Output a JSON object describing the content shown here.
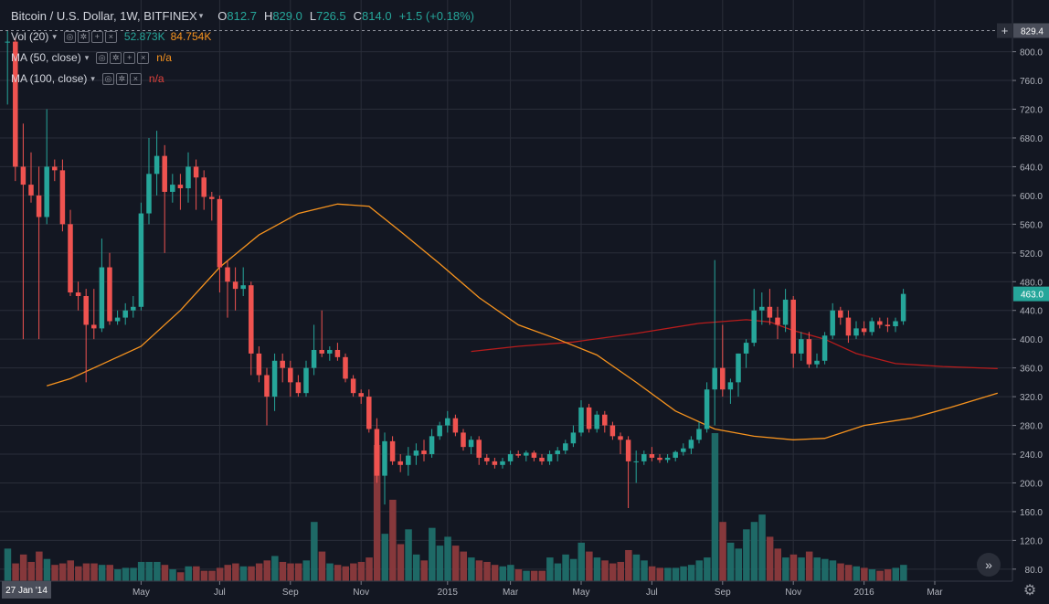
{
  "header": {
    "symbol": "Bitcoin / U.S. Dollar, 1W, BITFINEX",
    "open_label": "O",
    "open": "812.7",
    "high_label": "H",
    "high": "829.0",
    "low_label": "L",
    "low": "726.5",
    "close_label": "C",
    "close": "814.0",
    "change": "+1.5 (+0.18%)"
  },
  "indicators": {
    "vol": {
      "label": "Vol (20)",
      "value1": "52.873K",
      "value2": "84.754K"
    },
    "ma50": {
      "label": "MA (50, close)",
      "value": "n/a"
    },
    "ma100": {
      "label": "MA (100, close)",
      "value": "n/a"
    }
  },
  "buttons": {
    "expand": "»",
    "settings": "⚙",
    "glyph_eye": "◎",
    "glyph_gear": "✲",
    "glyph_plus": "+",
    "glyph_close": "×"
  },
  "colors": {
    "up": "#26a69a",
    "down": "#ef5350",
    "ma50": "#f7931e",
    "ma100": "#b71c1c",
    "bg": "#131722",
    "grid": "#2a2e39"
  },
  "chart_data": {
    "type": "candlestick",
    "title": "Bitcoin / U.S. Dollar, 1W, BITFINEX",
    "ylim": [
      62,
      844
    ],
    "y_ticks": [
      "80.0",
      "120.0",
      "160.0",
      "200.0",
      "240.0",
      "280.0",
      "320.0",
      "360.0",
      "400.0",
      "440.0",
      "480.0",
      "520.0",
      "560.0",
      "600.0",
      "640.0",
      "680.0",
      "720.0",
      "760.0",
      "800.0"
    ],
    "x_ticks": [
      {
        "label": "May",
        "index": 17
      },
      {
        "label": "Jul",
        "index": 27
      },
      {
        "label": "Sep",
        "index": 36
      },
      {
        "label": "Nov",
        "index": 45
      },
      {
        "label": "2015",
        "index": 56
      },
      {
        "label": "Mar",
        "index": 64
      },
      {
        "label": "May",
        "index": 73
      },
      {
        "label": "Jul",
        "index": 82
      },
      {
        "label": "Sep",
        "index": 91
      },
      {
        "label": "Nov",
        "index": 100
      },
      {
        "label": "2016",
        "index": 109
      },
      {
        "label": "Mar",
        "index": 118
      }
    ],
    "crosshair_date": "27 Jan '14",
    "last_price_label": "829.4",
    "current_price_label": "463.0",
    "last_price": 829.4,
    "current_price": 463.0,
    "volume_max": 1.0,
    "candles": [
      {
        "o": 812.7,
        "h": 829.0,
        "l": 726.5,
        "c": 814.0,
        "v": 0.22
      },
      {
        "o": 814,
        "h": 820,
        "l": 620,
        "c": 640,
        "v": 0.12
      },
      {
        "o": 640,
        "h": 700,
        "l": 400,
        "c": 615,
        "v": 0.18
      },
      {
        "o": 615,
        "h": 660,
        "l": 590,
        "c": 600,
        "v": 0.13
      },
      {
        "o": 600,
        "h": 640,
        "l": 400,
        "c": 570,
        "v": 0.2
      },
      {
        "o": 570,
        "h": 720,
        "l": 560,
        "c": 640,
        "v": 0.15
      },
      {
        "o": 640,
        "h": 650,
        "l": 620,
        "c": 635,
        "v": 0.11
      },
      {
        "o": 635,
        "h": 650,
        "l": 550,
        "c": 560,
        "v": 0.12
      },
      {
        "o": 560,
        "h": 580,
        "l": 460,
        "c": 465,
        "v": 0.14
      },
      {
        "o": 465,
        "h": 480,
        "l": 440,
        "c": 460,
        "v": 0.1
      },
      {
        "o": 460,
        "h": 470,
        "l": 340,
        "c": 420,
        "v": 0.12
      },
      {
        "o": 420,
        "h": 470,
        "l": 400,
        "c": 415,
        "v": 0.12
      },
      {
        "o": 415,
        "h": 540,
        "l": 410,
        "c": 500,
        "v": 0.11
      },
      {
        "o": 500,
        "h": 520,
        "l": 420,
        "c": 425,
        "v": 0.11
      },
      {
        "o": 425,
        "h": 440,
        "l": 420,
        "c": 430,
        "v": 0.08
      },
      {
        "o": 430,
        "h": 450,
        "l": 420,
        "c": 440,
        "v": 0.09
      },
      {
        "o": 440,
        "h": 460,
        "l": 430,
        "c": 445,
        "v": 0.09
      },
      {
        "o": 445,
        "h": 590,
        "l": 440,
        "c": 575,
        "v": 0.13
      },
      {
        "o": 575,
        "h": 680,
        "l": 560,
        "c": 630,
        "v": 0.13
      },
      {
        "o": 630,
        "h": 690,
        "l": 600,
        "c": 655,
        "v": 0.13
      },
      {
        "o": 655,
        "h": 670,
        "l": 520,
        "c": 605,
        "v": 0.11
      },
      {
        "o": 605,
        "h": 630,
        "l": 590,
        "c": 615,
        "v": 0.08
      },
      {
        "o": 615,
        "h": 630,
        "l": 580,
        "c": 610,
        "v": 0.06
      },
      {
        "o": 610,
        "h": 660,
        "l": 590,
        "c": 640,
        "v": 0.1
      },
      {
        "o": 640,
        "h": 650,
        "l": 580,
        "c": 625,
        "v": 0.1
      },
      {
        "o": 625,
        "h": 635,
        "l": 580,
        "c": 598,
        "v": 0.07
      },
      {
        "o": 598,
        "h": 605,
        "l": 565,
        "c": 595,
        "v": 0.07
      },
      {
        "o": 595,
        "h": 600,
        "l": 465,
        "c": 500,
        "v": 0.09
      },
      {
        "o": 500,
        "h": 510,
        "l": 430,
        "c": 480,
        "v": 0.11
      },
      {
        "o": 480,
        "h": 500,
        "l": 440,
        "c": 470,
        "v": 0.12
      },
      {
        "o": 470,
        "h": 500,
        "l": 460,
        "c": 475,
        "v": 0.1
      },
      {
        "o": 475,
        "h": 480,
        "l": 350,
        "c": 380,
        "v": 0.1
      },
      {
        "o": 380,
        "h": 390,
        "l": 340,
        "c": 350,
        "v": 0.12
      },
      {
        "o": 350,
        "h": 360,
        "l": 280,
        "c": 320,
        "v": 0.14
      },
      {
        "o": 320,
        "h": 380,
        "l": 300,
        "c": 370,
        "v": 0.17
      },
      {
        "o": 370,
        "h": 380,
        "l": 340,
        "c": 360,
        "v": 0.13
      },
      {
        "o": 360,
        "h": 370,
        "l": 320,
        "c": 340,
        "v": 0.12
      },
      {
        "o": 340,
        "h": 350,
        "l": 320,
        "c": 325,
        "v": 0.12
      },
      {
        "o": 325,
        "h": 370,
        "l": 320,
        "c": 360,
        "v": 0.14
      },
      {
        "o": 360,
        "h": 420,
        "l": 350,
        "c": 385,
        "v": 0.4
      },
      {
        "o": 385,
        "h": 440,
        "l": 375,
        "c": 380,
        "v": 0.2
      },
      {
        "o": 380,
        "h": 390,
        "l": 370,
        "c": 385,
        "v": 0.12
      },
      {
        "o": 385,
        "h": 395,
        "l": 370,
        "c": 375,
        "v": 0.11
      },
      {
        "o": 375,
        "h": 380,
        "l": 340,
        "c": 345,
        "v": 0.1
      },
      {
        "o": 345,
        "h": 350,
        "l": 320,
        "c": 325,
        "v": 0.12
      },
      {
        "o": 325,
        "h": 330,
        "l": 310,
        "c": 320,
        "v": 0.13
      },
      {
        "o": 320,
        "h": 330,
        "l": 270,
        "c": 275,
        "v": 0.16
      },
      {
        "o": 275,
        "h": 290,
        "l": 200,
        "c": 210,
        "v": 0.92
      },
      {
        "o": 210,
        "h": 270,
        "l": 170,
        "c": 258,
        "v": 0.32
      },
      {
        "o": 258,
        "h": 265,
        "l": 225,
        "c": 230,
        "v": 0.55
      },
      {
        "o": 230,
        "h": 240,
        "l": 215,
        "c": 225,
        "v": 0.25
      },
      {
        "o": 225,
        "h": 250,
        "l": 210,
        "c": 238,
        "v": 0.35
      },
      {
        "o": 238,
        "h": 255,
        "l": 225,
        "c": 245,
        "v": 0.18
      },
      {
        "o": 245,
        "h": 260,
        "l": 230,
        "c": 240,
        "v": 0.14
      },
      {
        "o": 240,
        "h": 275,
        "l": 235,
        "c": 265,
        "v": 0.36
      },
      {
        "o": 265,
        "h": 285,
        "l": 260,
        "c": 280,
        "v": 0.24
      },
      {
        "o": 280,
        "h": 300,
        "l": 270,
        "c": 290,
        "v": 0.3
      },
      {
        "o": 290,
        "h": 295,
        "l": 265,
        "c": 270,
        "v": 0.24
      },
      {
        "o": 270,
        "h": 275,
        "l": 245,
        "c": 250,
        "v": 0.2
      },
      {
        "o": 250,
        "h": 265,
        "l": 240,
        "c": 260,
        "v": 0.16
      },
      {
        "o": 260,
        "h": 265,
        "l": 225,
        "c": 235,
        "v": 0.14
      },
      {
        "o": 235,
        "h": 240,
        "l": 225,
        "c": 230,
        "v": 0.13
      },
      {
        "o": 230,
        "h": 235,
        "l": 220,
        "c": 225,
        "v": 0.11
      },
      {
        "o": 225,
        "h": 235,
        "l": 220,
        "c": 230,
        "v": 0.1
      },
      {
        "o": 230,
        "h": 245,
        "l": 225,
        "c": 240,
        "v": 0.11
      },
      {
        "o": 240,
        "h": 245,
        "l": 235,
        "c": 238,
        "v": 0.08
      },
      {
        "o": 238,
        "h": 245,
        "l": 230,
        "c": 242,
        "v": 0.07
      },
      {
        "o": 242,
        "h": 245,
        "l": 230,
        "c": 235,
        "v": 0.07
      },
      {
        "o": 235,
        "h": 240,
        "l": 225,
        "c": 230,
        "v": 0.07
      },
      {
        "o": 230,
        "h": 245,
        "l": 225,
        "c": 240,
        "v": 0.16
      },
      {
        "o": 240,
        "h": 250,
        "l": 230,
        "c": 245,
        "v": 0.12
      },
      {
        "o": 245,
        "h": 260,
        "l": 240,
        "c": 255,
        "v": 0.18
      },
      {
        "o": 255,
        "h": 280,
        "l": 250,
        "c": 270,
        "v": 0.15
      },
      {
        "o": 270,
        "h": 315,
        "l": 265,
        "c": 305,
        "v": 0.26
      },
      {
        "o": 305,
        "h": 310,
        "l": 270,
        "c": 275,
        "v": 0.2
      },
      {
        "o": 275,
        "h": 300,
        "l": 270,
        "c": 295,
        "v": 0.16
      },
      {
        "o": 295,
        "h": 300,
        "l": 270,
        "c": 280,
        "v": 0.14
      },
      {
        "o": 280,
        "h": 285,
        "l": 260,
        "c": 265,
        "v": 0.12
      },
      {
        "o": 265,
        "h": 270,
        "l": 240,
        "c": 260,
        "v": 0.13
      },
      {
        "o": 260,
        "h": 265,
        "l": 165,
        "c": 230,
        "v": 0.21
      },
      {
        "o": 230,
        "h": 245,
        "l": 200,
        "c": 230,
        "v": 0.18
      },
      {
        "o": 230,
        "h": 245,
        "l": 225,
        "c": 240,
        "v": 0.14
      },
      {
        "o": 240,
        "h": 250,
        "l": 230,
        "c": 235,
        "v": 0.1
      },
      {
        "o": 235,
        "h": 240,
        "l": 228,
        "c": 232,
        "v": 0.09
      },
      {
        "o": 232,
        "h": 240,
        "l": 228,
        "c": 235,
        "v": 0.09
      },
      {
        "o": 235,
        "h": 245,
        "l": 230,
        "c": 243,
        "v": 0.09
      },
      {
        "o": 243,
        "h": 255,
        "l": 238,
        "c": 248,
        "v": 0.1
      },
      {
        "o": 248,
        "h": 265,
        "l": 240,
        "c": 260,
        "v": 0.11
      },
      {
        "o": 260,
        "h": 285,
        "l": 255,
        "c": 275,
        "v": 0.14
      },
      {
        "o": 275,
        "h": 340,
        "l": 270,
        "c": 330,
        "v": 0.16
      },
      {
        "o": 330,
        "h": 510,
        "l": 280,
        "c": 360,
        "v": 1.0
      },
      {
        "o": 360,
        "h": 420,
        "l": 320,
        "c": 330,
        "v": 0.4
      },
      {
        "o": 330,
        "h": 345,
        "l": 310,
        "c": 340,
        "v": 0.26
      },
      {
        "o": 340,
        "h": 380,
        "l": 320,
        "c": 380,
        "v": 0.22
      },
      {
        "o": 380,
        "h": 400,
        "l": 360,
        "c": 395,
        "v": 0.35
      },
      {
        "o": 395,
        "h": 470,
        "l": 390,
        "c": 440,
        "v": 0.4
      },
      {
        "o": 440,
        "h": 465,
        "l": 420,
        "c": 445,
        "v": 0.45
      },
      {
        "o": 445,
        "h": 470,
        "l": 420,
        "c": 430,
        "v": 0.3
      },
      {
        "o": 430,
        "h": 445,
        "l": 400,
        "c": 420,
        "v": 0.22
      },
      {
        "o": 420,
        "h": 470,
        "l": 410,
        "c": 455,
        "v": 0.16
      },
      {
        "o": 455,
        "h": 460,
        "l": 360,
        "c": 380,
        "v": 0.18
      },
      {
        "o": 380,
        "h": 410,
        "l": 370,
        "c": 400,
        "v": 0.16
      },
      {
        "o": 400,
        "h": 410,
        "l": 360,
        "c": 365,
        "v": 0.2
      },
      {
        "o": 365,
        "h": 380,
        "l": 360,
        "c": 370,
        "v": 0.16
      },
      {
        "o": 370,
        "h": 410,
        "l": 365,
        "c": 405,
        "v": 0.15
      },
      {
        "o": 405,
        "h": 450,
        "l": 400,
        "c": 440,
        "v": 0.14
      },
      {
        "o": 440,
        "h": 445,
        "l": 420,
        "c": 430,
        "v": 0.12
      },
      {
        "o": 430,
        "h": 440,
        "l": 395,
        "c": 405,
        "v": 0.11
      },
      {
        "o": 405,
        "h": 425,
        "l": 400,
        "c": 415,
        "v": 0.1
      },
      {
        "o": 415,
        "h": 425,
        "l": 405,
        "c": 410,
        "v": 0.09
      },
      {
        "o": 410,
        "h": 430,
        "l": 405,
        "c": 425,
        "v": 0.08
      },
      {
        "o": 425,
        "h": 430,
        "l": 415,
        "c": 420,
        "v": 0.07
      },
      {
        "o": 420,
        "h": 430,
        "l": 410,
        "c": 418,
        "v": 0.08
      },
      {
        "o": 418,
        "h": 430,
        "l": 410,
        "c": 425,
        "v": 0.09
      },
      {
        "o": 425,
        "h": 470,
        "l": 420,
        "c": 463,
        "v": 0.11
      }
    ],
    "ma50": [
      {
        "i": 5,
        "v": 335
      },
      {
        "i": 8,
        "v": 345
      },
      {
        "i": 12,
        "v": 365
      },
      {
        "i": 17,
        "v": 390
      },
      {
        "i": 22,
        "v": 440
      },
      {
        "i": 27,
        "v": 500
      },
      {
        "i": 32,
        "v": 545
      },
      {
        "i": 37,
        "v": 575
      },
      {
        "i": 42,
        "v": 588
      },
      {
        "i": 46,
        "v": 585
      },
      {
        "i": 50,
        "v": 550
      },
      {
        "i": 55,
        "v": 505
      },
      {
        "i": 60,
        "v": 458
      },
      {
        "i": 65,
        "v": 420
      },
      {
        "i": 70,
        "v": 400
      },
      {
        "i": 75,
        "v": 378
      },
      {
        "i": 80,
        "v": 340
      },
      {
        "i": 85,
        "v": 300
      },
      {
        "i": 90,
        "v": 275
      },
      {
        "i": 95,
        "v": 265
      },
      {
        "i": 100,
        "v": 260
      },
      {
        "i": 104,
        "v": 262
      },
      {
        "i": 109,
        "v": 280
      },
      {
        "i": 115,
        "v": 290
      },
      {
        "i": 120,
        "v": 305
      },
      {
        "i": 126,
        "v": 325
      }
    ],
    "ma100": [
      {
        "i": 59,
        "v": 383
      },
      {
        "i": 65,
        "v": 390
      },
      {
        "i": 72,
        "v": 396
      },
      {
        "i": 80,
        "v": 408
      },
      {
        "i": 88,
        "v": 422
      },
      {
        "i": 94,
        "v": 427
      },
      {
        "i": 97,
        "v": 424
      },
      {
        "i": 100,
        "v": 412
      },
      {
        "i": 104,
        "v": 400
      },
      {
        "i": 108,
        "v": 380
      },
      {
        "i": 113,
        "v": 366
      },
      {
        "i": 119,
        "v": 362
      },
      {
        "i": 126,
        "v": 359
      }
    ]
  }
}
